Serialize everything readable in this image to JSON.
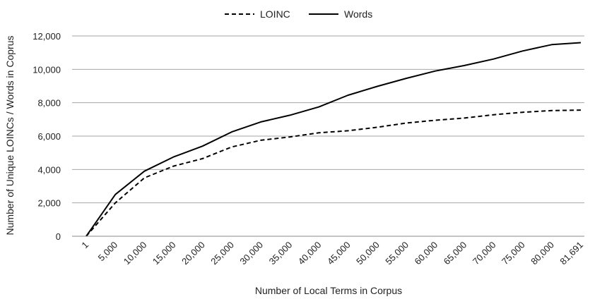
{
  "chart_data": {
    "type": "line",
    "categories": [
      "1",
      "5,000",
      "10,000",
      "15,000",
      "20,000",
      "25,000",
      "30,000",
      "35,000",
      "40,000",
      "45,000",
      "50,000",
      "55,000",
      "60,000",
      "65,000",
      "70,000",
      "75,000",
      "80,000",
      "81,691"
    ],
    "series": [
      {
        "name": "LOINC",
        "style": "dashed",
        "color": "#000000",
        "values": [
          0,
          2000,
          3500,
          4200,
          4650,
          5350,
          5750,
          5950,
          6200,
          6320,
          6530,
          6780,
          6950,
          7080,
          7280,
          7430,
          7530,
          7560
        ]
      },
      {
        "name": "Words",
        "style": "solid",
        "color": "#000000",
        "values": [
          0,
          2500,
          3900,
          4750,
          5400,
          6250,
          6850,
          7250,
          7750,
          8450,
          8980,
          9460,
          9900,
          10230,
          10620,
          11100,
          11480,
          11600
        ]
      }
    ],
    "xlabel": "Number of Local Terms in Corpus",
    "ylabel": "Number of Unique LOINCs / Words in Coprus",
    "ylim": [
      0,
      12000
    ],
    "yticks": [
      "0",
      "2,000",
      "4,000",
      "6,000",
      "8,000",
      "10,000",
      "12,000"
    ],
    "grid": true,
    "legend": "top-center"
  }
}
